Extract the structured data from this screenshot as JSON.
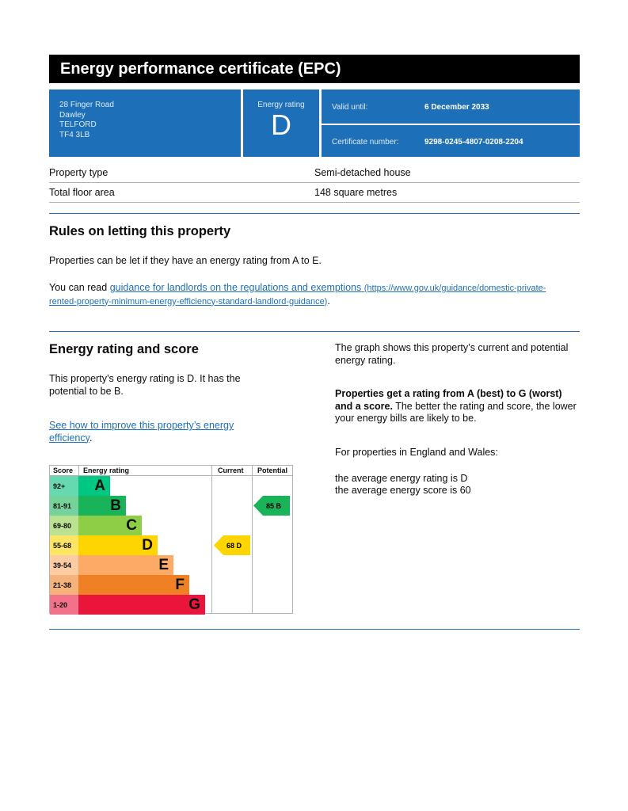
{
  "title": "Energy performance certificate (EPC)",
  "address": [
    "28 Finger Road",
    "Dawley",
    "TELFORD",
    "TF4 3LB"
  ],
  "energy_rating": {
    "label": "Energy rating",
    "value": "D"
  },
  "valid_until": {
    "label": "Valid until:",
    "value": "6 December 2033"
  },
  "certificate": {
    "label": "Certificate number:",
    "value": "9298-0245-4807-0208-2204"
  },
  "property": [
    {
      "label": "Property type",
      "value": "Semi-detached house"
    },
    {
      "label": "Total floor area",
      "value": "148 square metres"
    }
  ],
  "rules": {
    "heading": "Rules on letting this property",
    "p1": "Properties can be let if they have an energy rating from A to E.",
    "p2_prefix": "You can read ",
    "link": "guidance for landlords on the regulations and exemptions",
    "link_url_text": "(https://www.gov.uk/guidance/domestic-private-rented-property-minimum-energy-efficiency-standard-landlord-guidance)",
    "p2_suffix": "."
  },
  "score_section": {
    "heading": "Energy rating and score",
    "p1": "This property’s energy rating is D. It has the potential to be B.",
    "link": "See how to improve this property’s energy efficiency",
    "link_suffix": ".",
    "r1": "The graph shows this property’s current and potential energy rating.",
    "r2_bold": "Properties get a rating from A (best) to G (worst) and a score.",
    "r2_rest": " The better the rating and score, the lower your energy bills are likely to be.",
    "r3": "For properties in England and Wales:",
    "r4": "the average energy rating is D",
    "r5": "the average energy score is 60"
  },
  "chart_data": {
    "type": "table",
    "headers": [
      "Score",
      "Energy rating",
      "Current",
      "Potential"
    ],
    "bands": [
      {
        "letter": "A",
        "range": "92+",
        "color": "#00c781",
        "light": "#66d9b0"
      },
      {
        "letter": "B",
        "range": "81-91",
        "color": "#19b459",
        "light": "#75d29b"
      },
      {
        "letter": "C",
        "range": "69-80",
        "color": "#8dce46",
        "light": "#bbe290"
      },
      {
        "letter": "D",
        "range": "55-68",
        "color": "#ffd500",
        "light": "#ffe566"
      },
      {
        "letter": "E",
        "range": "39-54",
        "color": "#fcaa65",
        "light": "#fdcca3"
      },
      {
        "letter": "F",
        "range": "21-38",
        "color": "#ef8023",
        "light": "#f5b37b"
      },
      {
        "letter": "G",
        "range": "1-20",
        "color": "#e9153b",
        "light": "#f27389"
      }
    ],
    "current": {
      "score": 68,
      "band": "D",
      "label": "68  D"
    },
    "potential": {
      "score": 85,
      "band": "B",
      "label": "85  B"
    }
  }
}
